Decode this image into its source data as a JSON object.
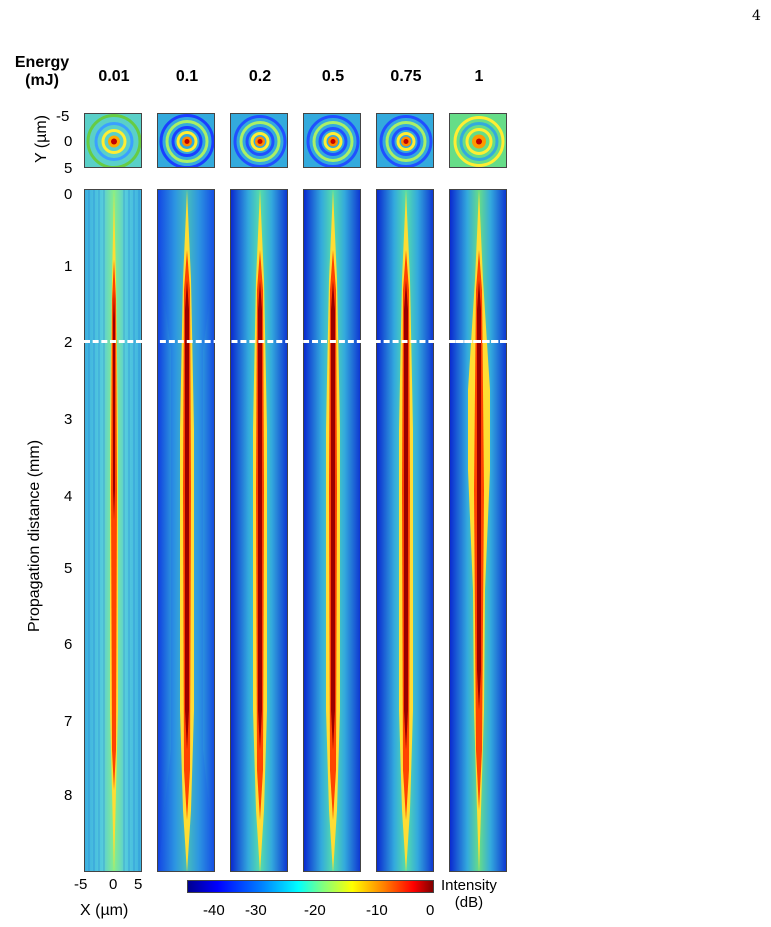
{
  "page_number": "4",
  "header": {
    "energy_label_line1": "Energy",
    "energy_label_line2": "(mJ)"
  },
  "energies": [
    "0.01",
    "0.1",
    "0.2",
    "0.5",
    "0.75",
    "1"
  ],
  "y_axis": {
    "label": "Y (µm)",
    "ticks": [
      "-5",
      "0",
      "5"
    ]
  },
  "z_axis": {
    "label": "Propagation distance (mm)",
    "ticks": [
      "0",
      "1",
      "2",
      "3",
      "4",
      "5",
      "6",
      "7",
      "8"
    ]
  },
  "x_axis": {
    "label": "X (µm)",
    "ticks": [
      "-5",
      "0",
      "5"
    ]
  },
  "colorbar": {
    "title_line1": "Intensity",
    "title_line2": "(dB)",
    "ticks": [
      "-40",
      "-30",
      "-20",
      "-10",
      "0"
    ]
  },
  "dashed_line_distance_mm": 2,
  "colors": {
    "background": "#00008f",
    "core": "#8b0000",
    "mid": "#00ffff",
    "halo": "#ffff00"
  }
}
